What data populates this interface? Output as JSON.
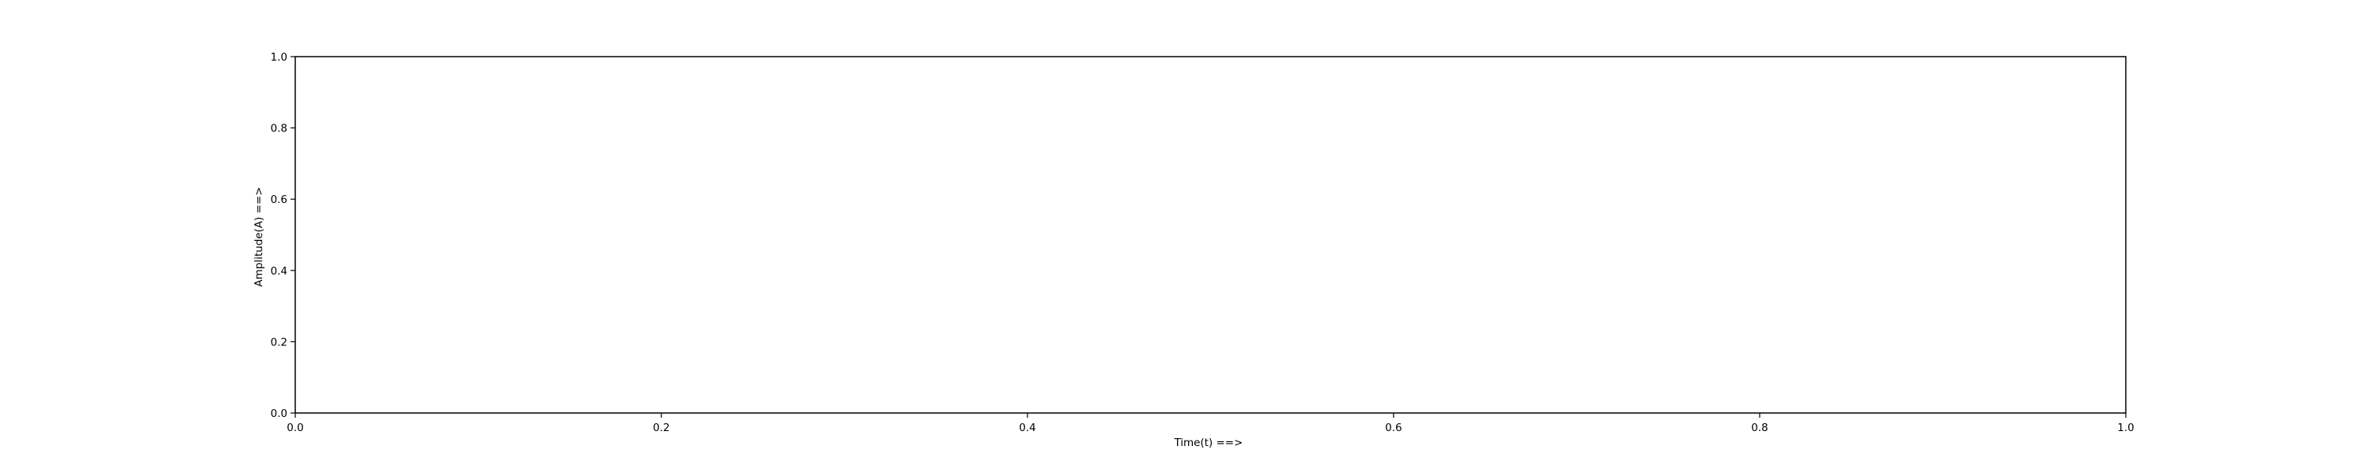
{
  "chart_data": {
    "type": "line",
    "title": "",
    "xlabel": "Time(t) ==>",
    "ylabel": "Amplitude(A) ==>",
    "xlim": [
      0.0,
      1.0
    ],
    "ylim": [
      0.0,
      1.0
    ],
    "x_ticks": [
      "0.0",
      "0.2",
      "0.4",
      "0.6",
      "0.8",
      "1.0"
    ],
    "y_ticks": [
      "0.0",
      "0.2",
      "0.4",
      "0.6",
      "0.8",
      "1.0"
    ],
    "grid": false,
    "legend": "none",
    "series": []
  }
}
